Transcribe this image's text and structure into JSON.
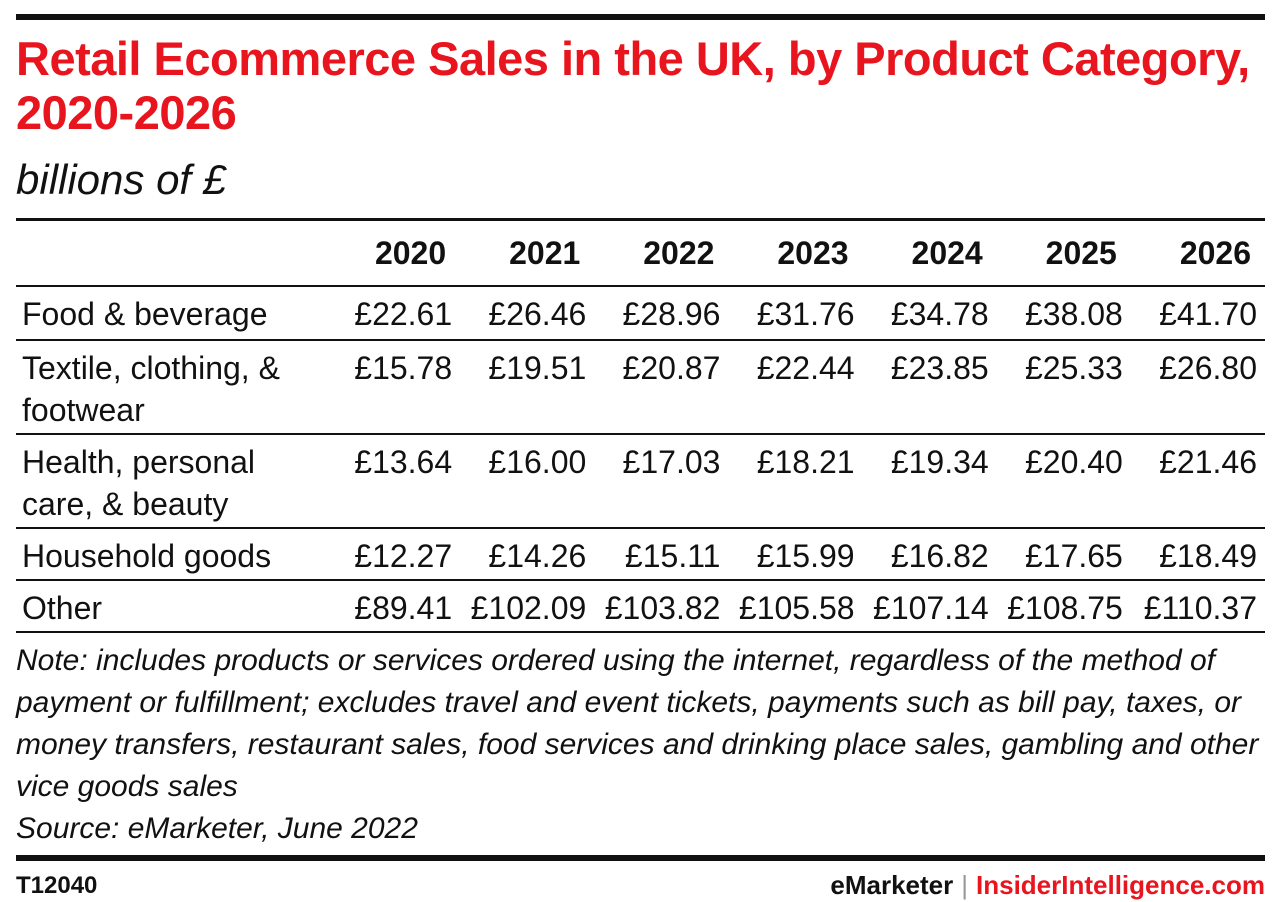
{
  "chart_data": {
    "type": "table",
    "title": "Retail Ecommerce Sales in the UK, by Product Category, 2020-2026",
    "subtitle": "billions of £",
    "columns": [
      "2020",
      "2021",
      "2022",
      "2023",
      "2024",
      "2025",
      "2026"
    ],
    "rows": [
      {
        "label": "Food & beverage",
        "values": [
          "£22.61",
          "£26.46",
          "£28.96",
          "£31.76",
          "£34.78",
          "£38.08",
          "£41.70"
        ]
      },
      {
        "label": "Textile, clothing, & footwear",
        "values": [
          "£15.78",
          "£19.51",
          "£20.87",
          "£22.44",
          "£23.85",
          "£25.33",
          "£26.80"
        ]
      },
      {
        "label": "Health, personal care, & beauty",
        "values": [
          "£13.64",
          "£16.00",
          "£17.03",
          "£18.21",
          "£19.34",
          "£20.40",
          "£21.46"
        ]
      },
      {
        "label": "Household goods",
        "values": [
          "£12.27",
          "£14.26",
          "£15.11",
          "£15.99",
          "£16.82",
          "£17.65",
          "£18.49"
        ]
      },
      {
        "label": "Other",
        "values": [
          "£89.41",
          "£102.09",
          "£103.82",
          "£105.58",
          "£107.14",
          "£108.75",
          "£110.37"
        ]
      }
    ],
    "note": "Note: includes products or services ordered using the internet, regardless of the method of payment or fulfillment; excludes travel and event tickets, payments such as bill pay, taxes, or money transfers, restaurant sales, food services and drinking place sales, gambling and other vice goods sales",
    "source": "Source: eMarketer, June 2022"
  },
  "footer": {
    "code": "T12040",
    "brand_primary": "eMarketer",
    "separator": "|",
    "brand_secondary": "InsiderIntelligence.com"
  },
  "colors": {
    "accent": "#e8141e",
    "text": "#111111"
  }
}
